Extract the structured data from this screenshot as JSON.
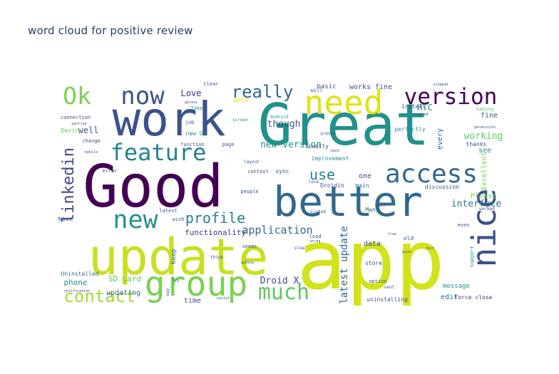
{
  "chart_data": {
    "type": "wordcloud",
    "title": "word cloud for positive review",
    "palette": {
      "dark_purple": "#440154",
      "indigo": "#3b528b",
      "teal": "#21918c",
      "green": "#5ec962",
      "yellow_green": "#c8e020",
      "yellow": "#dfe318",
      "light_green": "#7ad151"
    },
    "words": [
      {
        "text": "app",
        "color": "#d2e21b"
      },
      {
        "text": "Great",
        "color": "#21918c"
      },
      {
        "text": "Good",
        "color": "#440154"
      },
      {
        "text": "work",
        "color": "#3b528b"
      },
      {
        "text": "update",
        "color": "#c8e020"
      },
      {
        "text": "better",
        "color": "#31688e"
      },
      {
        "text": "need",
        "color": "#dfe318"
      },
      {
        "text": "group",
        "color": "#7ad151"
      },
      {
        "text": "nice",
        "color": "#3b528b"
      },
      {
        "text": "access",
        "color": "#31688e"
      },
      {
        "text": "feature",
        "color": "#26828e"
      },
      {
        "text": "version",
        "color": "#440154"
      },
      {
        "text": "now",
        "color": "#3b528b"
      },
      {
        "text": "new",
        "color": "#21918c"
      },
      {
        "text": "Ok",
        "color": "#7ad151"
      },
      {
        "text": "much",
        "color": "#5ec962"
      },
      {
        "text": "really",
        "color": "#31688e"
      },
      {
        "text": "contact",
        "color": "#a0da39"
      },
      {
        "text": "linkedin",
        "color": "#3e4989"
      },
      {
        "text": "profile",
        "color": "#26828e"
      },
      {
        "text": "use",
        "color": "#26828e"
      },
      {
        "text": "application",
        "color": "#31688e"
      },
      {
        "text": "latest update",
        "color": "#31688e"
      },
      {
        "text": "interface",
        "color": "#2a788e"
      },
      {
        "text": "Droid X",
        "color": "#3e4989"
      },
      {
        "text": "functionality",
        "color": "#443983"
      },
      {
        "text": "working",
        "color": "#5ec962"
      },
      {
        "text": "Love",
        "color": "#46327e"
      },
      {
        "text": "new version",
        "color": "#21918c"
      },
      {
        "text": "though",
        "color": "#3b528b"
      },
      {
        "text": "HTC",
        "color": "#21918c"
      },
      {
        "text": "well",
        "color": "#3b528b"
      },
      {
        "text": "phone",
        "color": "#21918c"
      },
      {
        "text": "SD card",
        "color": "#5ec962"
      },
      {
        "text": "updating",
        "color": "#31688e"
      },
      {
        "text": "Excellent",
        "color": "#7ad151"
      },
      {
        "text": "fine",
        "color": "#3b528b"
      },
      {
        "text": "see",
        "color": "#21918c"
      },
      {
        "text": "Please",
        "color": "#7ad151"
      },
      {
        "text": "edit",
        "color": "#31688e"
      },
      {
        "text": "time",
        "color": "#3b528b"
      },
      {
        "text": "Keep",
        "color": "#31688e"
      },
      {
        "text": "data",
        "color": "#3b528b"
      },
      {
        "text": "every",
        "color": "#31688e"
      },
      {
        "text": "move",
        "color": "#31688e"
      },
      {
        "text": "Uninstalled",
        "color": "#31688e"
      },
      {
        "text": "works fine",
        "color": "#3b528b"
      },
      {
        "text": "basic",
        "color": "#3b528b"
      },
      {
        "text": "one",
        "color": "#3e4989"
      },
      {
        "text": "message",
        "color": "#21918c"
      },
      {
        "text": "Force close",
        "color": "#46327e"
      },
      {
        "text": "uninstalling",
        "color": "#3b528b"
      },
      {
        "text": "Droidin",
        "color": "#3b528b"
      },
      {
        "text": "main",
        "color": "#31688e"
      },
      {
        "text": "Many",
        "color": "#31688e"
      },
      {
        "text": "perfectly",
        "color": "#21918c"
      },
      {
        "text": "improvement",
        "color": "#21918c"
      },
      {
        "text": "thanks",
        "color": "#3b528b"
      },
      {
        "text": "discussion",
        "color": "#3b528b"
      },
      {
        "text": "finally",
        "color": "#3b528b"
      },
      {
        "text": "install",
        "color": "#3b528b"
      },
      {
        "text": "able",
        "color": "#dfe318"
      },
      {
        "text": "Desire",
        "color": "#5ec962"
      },
      {
        "text": "change",
        "color": "#3b528b"
      },
      {
        "text": "error",
        "color": "#3b528b"
      },
      {
        "text": "connection",
        "color": "#3b528b"
      },
      {
        "text": "wish",
        "color": "#3b528b"
      },
      {
        "text": "latest",
        "color": "#3b528b"
      },
      {
        "text": "function",
        "color": "#3b528b"
      },
      {
        "text": "new UI",
        "color": "#21918c"
      },
      {
        "text": "job",
        "color": "#3b528b"
      },
      {
        "text": "sync",
        "color": "#3b528b"
      },
      {
        "text": "context",
        "color": "#3b528b"
      },
      {
        "text": "layout",
        "color": "#3b528b"
      },
      {
        "text": "people",
        "color": "#3b528b"
      },
      {
        "text": "seems",
        "color": "#3b528b"
      },
      {
        "text": "store",
        "color": "#3b528b"
      },
      {
        "text": "option",
        "color": "#3b528b"
      },
      {
        "text": "load",
        "color": "#3b528b"
      },
      {
        "text": "Clear",
        "color": "#3b528b"
      },
      {
        "text": "Take",
        "color": "#21918c"
      },
      {
        "text": "screen",
        "color": "#21918c"
      },
      {
        "text": "even",
        "color": "#3b528b"
      },
      {
        "text": "Samsung",
        "color": "#5ec962"
      },
      {
        "text": "support",
        "color": "#21918c"
      },
      {
        "text": "worked",
        "color": "#3b528b"
      },
      {
        "text": "will",
        "color": "#3b528b"
      },
      {
        "text": "page",
        "color": "#3b528b"
      },
      {
        "text": "old",
        "color": "#3b528b"
      },
      {
        "text": "slow",
        "color": "#3b528b"
      },
      {
        "text": "lock",
        "color": "#3b528b"
      },
      {
        "text": "problem",
        "color": "#3b528b"
      },
      {
        "text": "sent",
        "color": "#3b528b"
      },
      {
        "text": "Try",
        "color": "#3b528b"
      },
      {
        "text": "way",
        "color": "#3b528b"
      },
      {
        "text": "galaxy",
        "color": "#3b528b"
      },
      {
        "text": "Android",
        "color": "#21918c"
      },
      {
        "text": "Listed",
        "color": "#3b528b"
      },
      {
        "text": "notification",
        "color": "#3b528b"
      },
      {
        "text": "stopped",
        "color": "#3b528b"
      },
      {
        "text": "crashed",
        "color": "#3b528b"
      },
      {
        "text": "permission",
        "color": "#3b528b"
      },
      {
        "text": "waiting",
        "color": "#3b528b"
      },
      {
        "text": "mobile",
        "color": "#3b528b"
      },
      {
        "text": "social",
        "color": "#3b528b"
      },
      {
        "text": "adding",
        "color": "#3b528b"
      },
      {
        "text": "think",
        "color": "#3b528b"
      },
      {
        "text": "free",
        "color": "#3b528b"
      },
      {
        "text": "give",
        "color": "#3b528b"
      },
      {
        "text": "fast",
        "color": "#3b528b"
      },
      {
        "text": "back",
        "color": "#3b528b"
      },
      {
        "text": "email",
        "color": "#3b528b"
      },
      {
        "text": "using",
        "color": "#3b528b"
      }
    ]
  }
}
